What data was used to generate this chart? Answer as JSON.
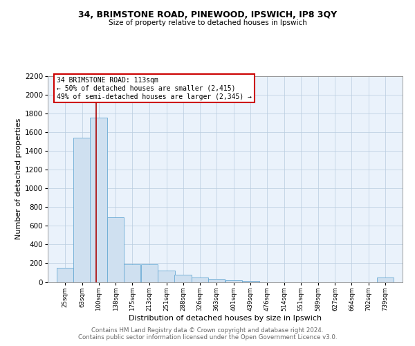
{
  "title1": "34, BRIMSTONE ROAD, PINEWOOD, IPSWICH, IP8 3QY",
  "title2": "Size of property relative to detached houses in Ipswich",
  "xlabel": "Distribution of detached houses by size in Ipswich",
  "ylabel": "Number of detached properties",
  "bar_color": "#cfe0f0",
  "bar_edge_color": "#6aaad4",
  "bg_color": "#eaf2fb",
  "grid_color": "#b8ccdf",
  "marker_line_color": "#aa0000",
  "marker_value": 113,
  "annotation_title": "34 BRIMSTONE ROAD: 113sqm",
  "annotation_line1": "← 50% of detached houses are smaller (2,415)",
  "annotation_line2": "49% of semi-detached houses are larger (2,345) →",
  "footer1": "Contains HM Land Registry data © Crown copyright and database right 2024.",
  "footer2": "Contains public sector information licensed under the Open Government Licence v3.0.",
  "bins": [
    25,
    63,
    100,
    138,
    175,
    213,
    251,
    288,
    326,
    363,
    401,
    439,
    476,
    514,
    551,
    589,
    627,
    664,
    702,
    739,
    777
  ],
  "counts": [
    150,
    1540,
    1760,
    690,
    190,
    185,
    120,
    75,
    50,
    35,
    15,
    12,
    0,
    0,
    0,
    0,
    0,
    0,
    0,
    50
  ],
  "ylim": [
    0,
    2200
  ],
  "yticks": [
    0,
    200,
    400,
    600,
    800,
    1000,
    1200,
    1400,
    1600,
    1800,
    2000,
    2200
  ]
}
